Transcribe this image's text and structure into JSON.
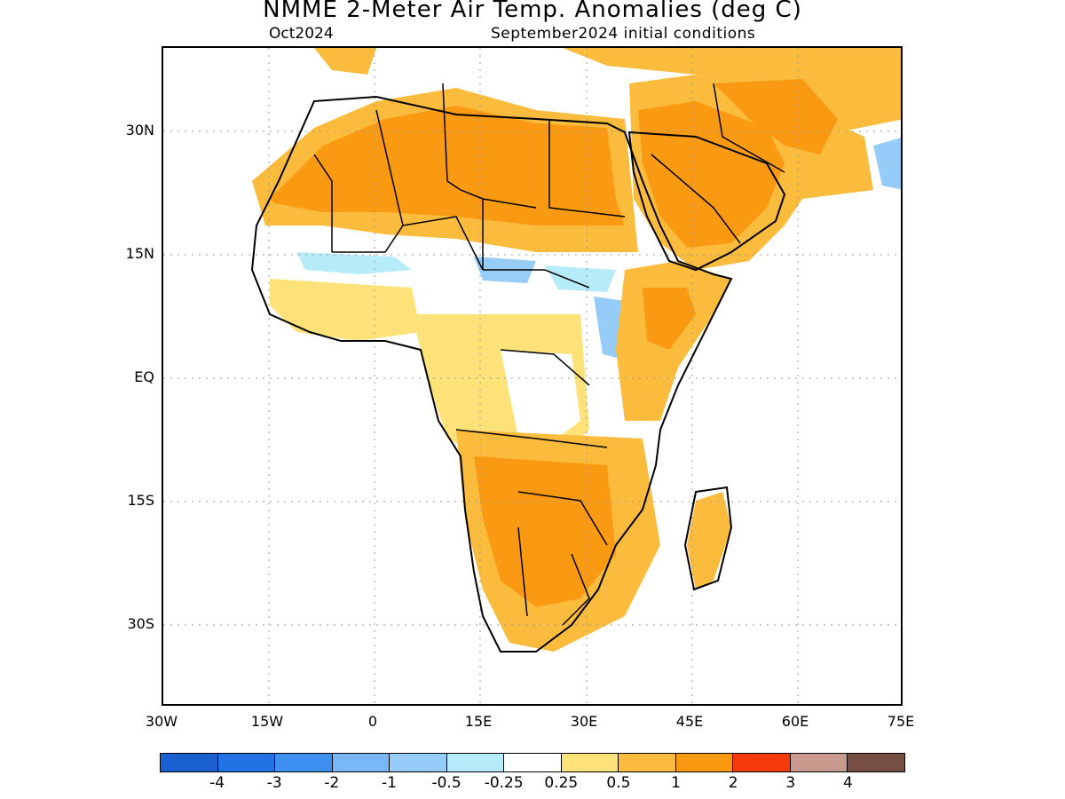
{
  "title": "NMME 2-Meter Air Temp. Anomalies (deg C)",
  "subtitle_left": "Oct2024",
  "subtitle_right": "September2024 initial conditions",
  "lat_labels": [
    "30N",
    "15N",
    "EQ",
    "15S",
    "30S"
  ],
  "lon_labels": [
    "30W",
    "15W",
    "0",
    "15E",
    "30E",
    "45E",
    "60E",
    "75E"
  ],
  "colorbar": {
    "colors": [
      "#1a5fd0",
      "#2272e6",
      "#3d90ef",
      "#78b6f5",
      "#96cdf8",
      "#b6ecf9",
      "#ffffff",
      "#fde27a",
      "#fbbb3c",
      "#f99a12",
      "#f53a0c",
      "#c79a8d",
      "#774e42"
    ],
    "labels": [
      "-4",
      "-3",
      "-2",
      "-1",
      "-0.5",
      "-0.25",
      "0.25",
      "0.5",
      "1",
      "2",
      "3",
      "4"
    ]
  },
  "palette": {
    "anomaly_0_5_1": "#fde27a",
    "anomaly_1_2": "#fbbb3c",
    "anomaly_2_3": "#f99a12",
    "anomaly_neg_0_25_0_5": "#b6ecf9",
    "anomaly_neg_0_5_1": "#96cdf8",
    "coastline": "#000000",
    "gridline": "#999999"
  }
}
